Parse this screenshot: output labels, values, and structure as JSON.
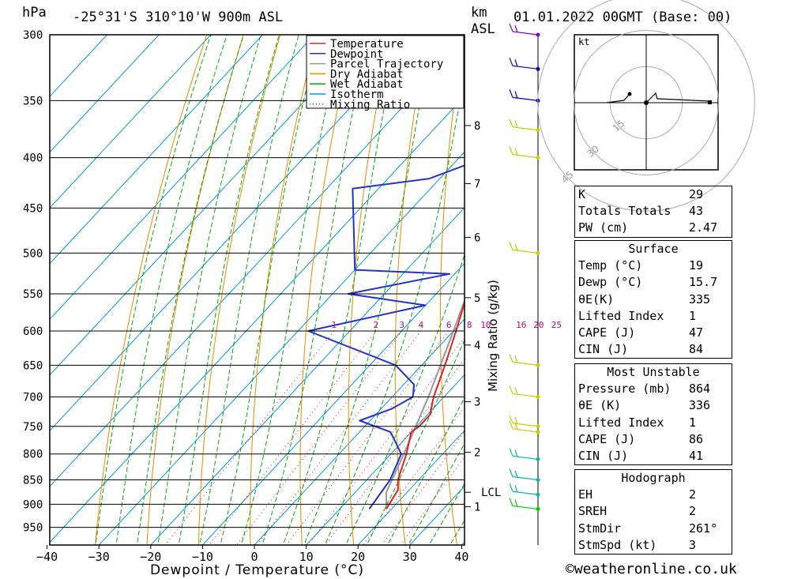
{
  "header": {
    "pressure_unit": "hPa",
    "location": "-25°31'S  310°10'W  900m  ASL",
    "height_unit_km": "km",
    "height_unit_asl": "ASL",
    "datetime": "01.01.2022  00GMT  (Base: 00)"
  },
  "chart_data": {
    "type": "skew-t log-p",
    "xlabel": "Dewpoint / Temperature (°C)",
    "ylabel_right": "Mixing Ratio (g/kg)",
    "x_ticks": [
      -40,
      -30,
      -20,
      -10,
      0,
      10,
      20,
      30,
      40
    ],
    "x_tick_labels": [
      "−40",
      "−30",
      "−20",
      "−10",
      "0",
      "10",
      "20",
      "30",
      "40"
    ],
    "pressure_levels": [
      300,
      350,
      400,
      450,
      500,
      550,
      600,
      650,
      700,
      750,
      800,
      850,
      900,
      950
    ],
    "pressure_range": [
      300,
      990
    ],
    "km_ticks": [
      {
        "km": 1,
        "p": 905
      },
      {
        "km": 2,
        "p": 797
      },
      {
        "km": 3,
        "p": 708
      },
      {
        "km": 4,
        "p": 620
      },
      {
        "km": 5,
        "p": 555
      },
      {
        "km": 6,
        "p": 482
      },
      {
        "km": 7,
        "p": 425
      },
      {
        "km": 8,
        "p": 371
      }
    ],
    "lcl": {
      "label": "LCL",
      "p": 875
    },
    "mixing_ratio_labels": [
      "1",
      "2",
      "3",
      "4",
      "6",
      "8",
      "10",
      "16",
      "20",
      "25"
    ],
    "mixing_ratio_values": [
      1,
      2,
      3,
      4,
      6,
      8,
      10,
      16,
      20,
      25
    ],
    "legend": [
      "Temperature",
      "Dewpoint",
      "Parcel Trajectory",
      "Dry Adiabat",
      "Wet Adiabat",
      "Isotherm",
      "Mixing Ratio"
    ],
    "legend_position": "top-right",
    "temperature": [
      {
        "p": 910,
        "t": 19.0
      },
      {
        "p": 870,
        "t": 17.8
      },
      {
        "p": 850,
        "t": 16.0
      },
      {
        "p": 800,
        "t": 13.0
      },
      {
        "p": 760,
        "t": 10.0
      },
      {
        "p": 750,
        "t": 10.5
      },
      {
        "p": 730,
        "t": 10.5
      },
      {
        "p": 700,
        "t": 8.0
      },
      {
        "p": 650,
        "t": 4.5
      },
      {
        "p": 600,
        "t": 0.5
      },
      {
        "p": 550,
        "t": -4.0
      },
      {
        "p": 510,
        "t": -7.5
      },
      {
        "p": 500,
        "t": -9.0
      },
      {
        "p": 450,
        "t": -14.5
      },
      {
        "p": 420,
        "t": -18.0
      },
      {
        "p": 400,
        "t": -22.0
      },
      {
        "p": 370,
        "t": -26.0
      },
      {
        "p": 360,
        "t": -26.0
      },
      {
        "p": 350,
        "t": -27.0
      },
      {
        "p": 330,
        "t": -30.0
      },
      {
        "p": 300,
        "t": -35.0
      }
    ],
    "dewpoint": [
      {
        "p": 910,
        "t": 15.7
      },
      {
        "p": 850,
        "t": 14.5
      },
      {
        "p": 800,
        "t": 12.0
      },
      {
        "p": 760,
        "t": 6.0
      },
      {
        "p": 740,
        "t": -2.0
      },
      {
        "p": 720,
        "t": 2.0
      },
      {
        "p": 700,
        "t": 4.0
      },
      {
        "p": 680,
        "t": 2.0
      },
      {
        "p": 650,
        "t": -5.0
      },
      {
        "p": 600,
        "t": -28.0
      },
      {
        "p": 565,
        "t": -10.0
      },
      {
        "p": 550,
        "t": -27.0
      },
      {
        "p": 525,
        "t": -11.0
      },
      {
        "p": 520,
        "t": -30.0
      },
      {
        "p": 430,
        "t": -45.0
      },
      {
        "p": 420,
        "t": -32.0
      },
      {
        "p": 400,
        "t": -25.0
      },
      {
        "p": 380,
        "t": -27.0
      },
      {
        "p": 370,
        "t": -27.0
      },
      {
        "p": 355,
        "t": -25.0
      },
      {
        "p": 350,
        "t": -28.0
      },
      {
        "p": 300,
        "t": -37.0
      }
    ],
    "parcel": [
      {
        "p": 910,
        "t": 19.0
      },
      {
        "p": 875,
        "t": 16.0
      },
      {
        "p": 800,
        "t": 12.5
      },
      {
        "p": 700,
        "t": 7.0
      },
      {
        "p": 600,
        "t": 0.0
      },
      {
        "p": 500,
        "t": -8.5
      },
      {
        "p": 400,
        "t": -22.0
      },
      {
        "p": 350,
        "t": -31.0
      },
      {
        "p": 300,
        "t": -40.0
      }
    ],
    "wind_barbs": [
      {
        "p": 300,
        "color": "#8800cc"
      },
      {
        "p": 325,
        "color": "#0000cc"
      },
      {
        "p": 350,
        "color": "#0000cc"
      },
      {
        "p": 375,
        "color": "#cccc00"
      },
      {
        "p": 400,
        "color": "#cccc00"
      },
      {
        "p": 500,
        "color": "#cccc00"
      },
      {
        "p": 650,
        "color": "#cccc00"
      },
      {
        "p": 700,
        "color": "#cccc00"
      },
      {
        "p": 750,
        "color": "#cccc00"
      },
      {
        "p": 760,
        "color": "#cccc00"
      },
      {
        "p": 810,
        "color": "#00bbaa"
      },
      {
        "p": 850,
        "color": "#00bbaa"
      },
      {
        "p": 880,
        "color": "#00bbaa"
      },
      {
        "p": 910,
        "color": "#00cc00"
      }
    ]
  },
  "hodograph": {
    "unit": "kt",
    "ring_labels": [
      "15",
      "30",
      "45"
    ]
  },
  "indices": {
    "k_label": "K",
    "k_value": "29",
    "tt_label": "Totals Totals",
    "tt_value": "43",
    "pw_label": "PW (cm)",
    "pw_value": "2.47",
    "surface_title": "Surface",
    "surface": [
      {
        "label": "Temp (°C)",
        "value": "19"
      },
      {
        "label": "Dewp (°C)",
        "value": "15.7"
      },
      {
        "label": "θE(K)",
        "value": "335"
      },
      {
        "label": "Lifted Index",
        "value": "1"
      },
      {
        "label": "CAPE (J)",
        "value": "47"
      },
      {
        "label": "CIN (J)",
        "value": "84"
      }
    ],
    "mu_title": "Most Unstable",
    "most_unstable": [
      {
        "label": "Pressure (mb)",
        "value": "864"
      },
      {
        "label": "θE (K)",
        "value": "336"
      },
      {
        "label": "Lifted Index",
        "value": "1"
      },
      {
        "label": "CAPE (J)",
        "value": "86"
      },
      {
        "label": "CIN (J)",
        "value": "41"
      }
    ],
    "hodo_title": "Hodograph",
    "hodo_stats": [
      {
        "label": "EH",
        "value": "2"
      },
      {
        "label": "SREH",
        "value": "2"
      },
      {
        "label": "StmDir",
        "value": "261°"
      },
      {
        "label": "StmSpd (kt)",
        "value": "3"
      }
    ]
  },
  "footer": {
    "copyright_symbol": "©",
    "site": "weatheronline.co.uk"
  },
  "colors": {
    "temperature": "#dd2222",
    "dewpoint": "#2233cc",
    "parcel": "#999999",
    "dry_adiabat": "#ee8800",
    "wet_adiabat": "#00aa00",
    "isotherm": "#0099dd",
    "mixing_ratio": "#cc0077"
  }
}
